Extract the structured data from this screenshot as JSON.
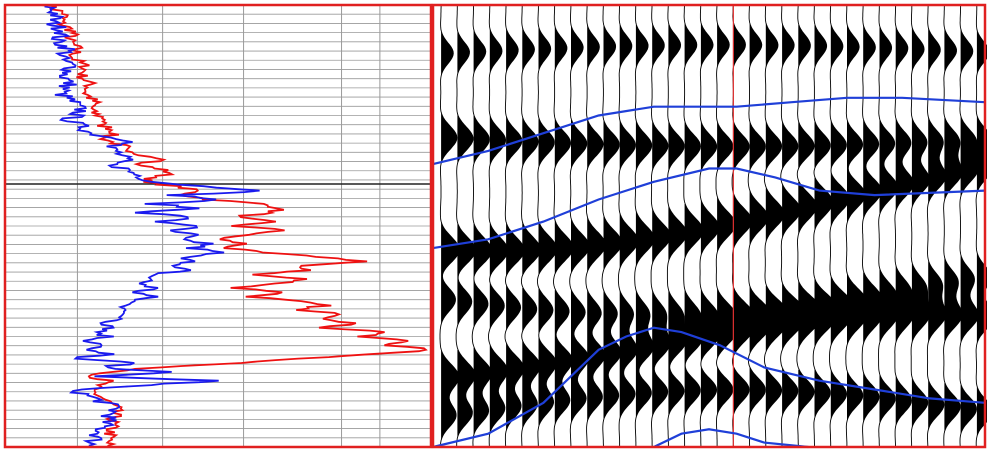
{
  "colors": {
    "frame": "#e02020",
    "grid": "#9a9a9a",
    "marker_line": "#222222",
    "curve_red": "#ee1111",
    "curve_blue": "#1a1aee",
    "wiggle": "#000000",
    "horizon": "#1f3fd8",
    "well_marker": "#e03030"
  },
  "chart_data": [
    {
      "type": "line",
      "panel": "well-log",
      "title": "",
      "xlabel": "",
      "ylabel": "",
      "grid": true,
      "tick_labels": [],
      "xlim": [
        0,
        10
      ],
      "ylim": [
        0,
        100
      ],
      "marker_depth": 40.5,
      "series": [
        {
          "color": "red",
          "x": [
            1.0,
            1.4,
            1.3,
            1.6,
            1.5,
            1.7,
            1.6,
            1.9,
            1.8,
            2.0,
            1.9,
            2.1,
            2.0,
            2.4,
            2.2,
            2.5,
            2.6,
            2.3,
            2.5,
            2.8,
            2.7,
            3.9,
            3.0,
            3.6,
            3.9,
            3.2,
            4.0,
            4.5,
            4.2,
            4.8,
            6.0,
            6.5,
            6.2,
            5.4,
            6.2,
            5.4,
            6.6,
            5.6,
            5.0,
            5.6,
            5.2,
            6.0,
            7.4,
            8.5,
            6.8,
            7.2,
            5.8,
            7.0,
            6.5,
            5.4,
            6.6,
            5.8,
            6.8,
            7.5,
            6.8,
            8.0,
            7.6,
            8.2,
            7.5,
            9.0,
            8.3,
            9.5,
            9.0,
            10.0,
            8.7,
            7.0,
            5.5,
            3.5,
            2.6,
            2.0,
            2.4,
            2.0,
            2.6,
            2.4
          ],
          "y": [
            0,
            2,
            4,
            6,
            8,
            10,
            12,
            14,
            16,
            18,
            20,
            22,
            24,
            26,
            27,
            28,
            29,
            30,
            31,
            32,
            33,
            35,
            36,
            37,
            38,
            40,
            41,
            42,
            43,
            44,
            45,
            46,
            47,
            48,
            49,
            50,
            51,
            52,
            53,
            54,
            55,
            56,
            57,
            58,
            59,
            60,
            61,
            62,
            63,
            64,
            65,
            66,
            67,
            68,
            69,
            70,
            71,
            72,
            73,
            74,
            75,
            76,
            77,
            78,
            79,
            80,
            81,
            82,
            83,
            84,
            85,
            87,
            91,
            100
          ]
        },
        {
          "color": "blue",
          "x": [
            1.0,
            1.2,
            1.1,
            1.4,
            1.2,
            1.5,
            1.3,
            1.6,
            1.4,
            1.5,
            1.3,
            1.6,
            1.8,
            1.5,
            1.7,
            1.9,
            2.0,
            2.5,
            3.2,
            2.4,
            2.6,
            2.8,
            2.5,
            2.8,
            3.0,
            3.5,
            4.6,
            6.2,
            4.0,
            5.0,
            3.5,
            4.5,
            3.2,
            4.4,
            3.6,
            4.6,
            3.8,
            4.4,
            4.0,
            4.8,
            4.4,
            5.0,
            4.2,
            4.6,
            3.8,
            4.2,
            3.5,
            3.4,
            3.2,
            3.5,
            3.1,
            3.4,
            3.0,
            2.8,
            3.0,
            2.6,
            2.8,
            2.4,
            2.6,
            2.2,
            2.4,
            2.0,
            2.4,
            1.8,
            2.4,
            1.6,
            3.0,
            2.2,
            4.0,
            2.0,
            5.0,
            1.6,
            2.6,
            2.0
          ],
          "y": [
            0,
            2,
            4,
            6,
            8,
            10,
            12,
            14,
            16,
            18,
            20,
            22,
            24,
            26,
            27,
            28,
            29,
            30,
            31,
            32,
            33,
            35,
            36,
            37,
            38,
            40,
            41,
            42,
            43,
            44,
            45,
            46,
            47,
            48,
            49,
            50,
            51,
            52,
            53,
            54,
            55,
            56,
            57,
            58,
            59,
            60,
            61,
            62,
            63,
            64,
            65,
            66,
            67,
            68,
            69,
            70,
            71,
            72,
            73,
            74,
            75,
            76,
            77,
            78,
            79,
            80,
            81,
            82,
            83,
            84,
            85,
            87,
            91,
            100
          ]
        }
      ]
    },
    {
      "type": "line",
      "panel": "seismic-section",
      "title": "",
      "xlabel": "",
      "ylabel": "",
      "trace_count": 34,
      "ylim": [
        0,
        100
      ],
      "well_trace": 18,
      "horizons": [
        {
          "x": [
            0.0,
            0.1,
            0.2,
            0.3,
            0.4,
            0.55,
            0.65,
            0.75,
            0.85,
            1.0
          ],
          "y": [
            36,
            33,
            29,
            25,
            23,
            23,
            22,
            21,
            21,
            22
          ]
        },
        {
          "x": [
            0.0,
            0.1,
            0.2,
            0.3,
            0.4,
            0.5,
            0.55,
            0.62,
            0.7,
            0.8,
            1.0
          ],
          "y": [
            55,
            53,
            49,
            44,
            40,
            37,
            37,
            39,
            42,
            43,
            42
          ]
        },
        {
          "x": [
            0.0,
            0.1,
            0.2,
            0.3,
            0.35,
            0.4,
            0.45,
            0.52,
            0.6,
            0.7,
            0.8,
            0.9,
            1.0
          ],
          "y": [
            100,
            97,
            90,
            78,
            75,
            73,
            74,
            77,
            82,
            85,
            87,
            89,
            90
          ]
        },
        {
          "x": [
            0.4,
            0.45,
            0.5,
            0.55,
            0.6,
            0.68
          ],
          "y": [
            100,
            97,
            96,
            97,
            99,
            100
          ]
        }
      ]
    }
  ]
}
